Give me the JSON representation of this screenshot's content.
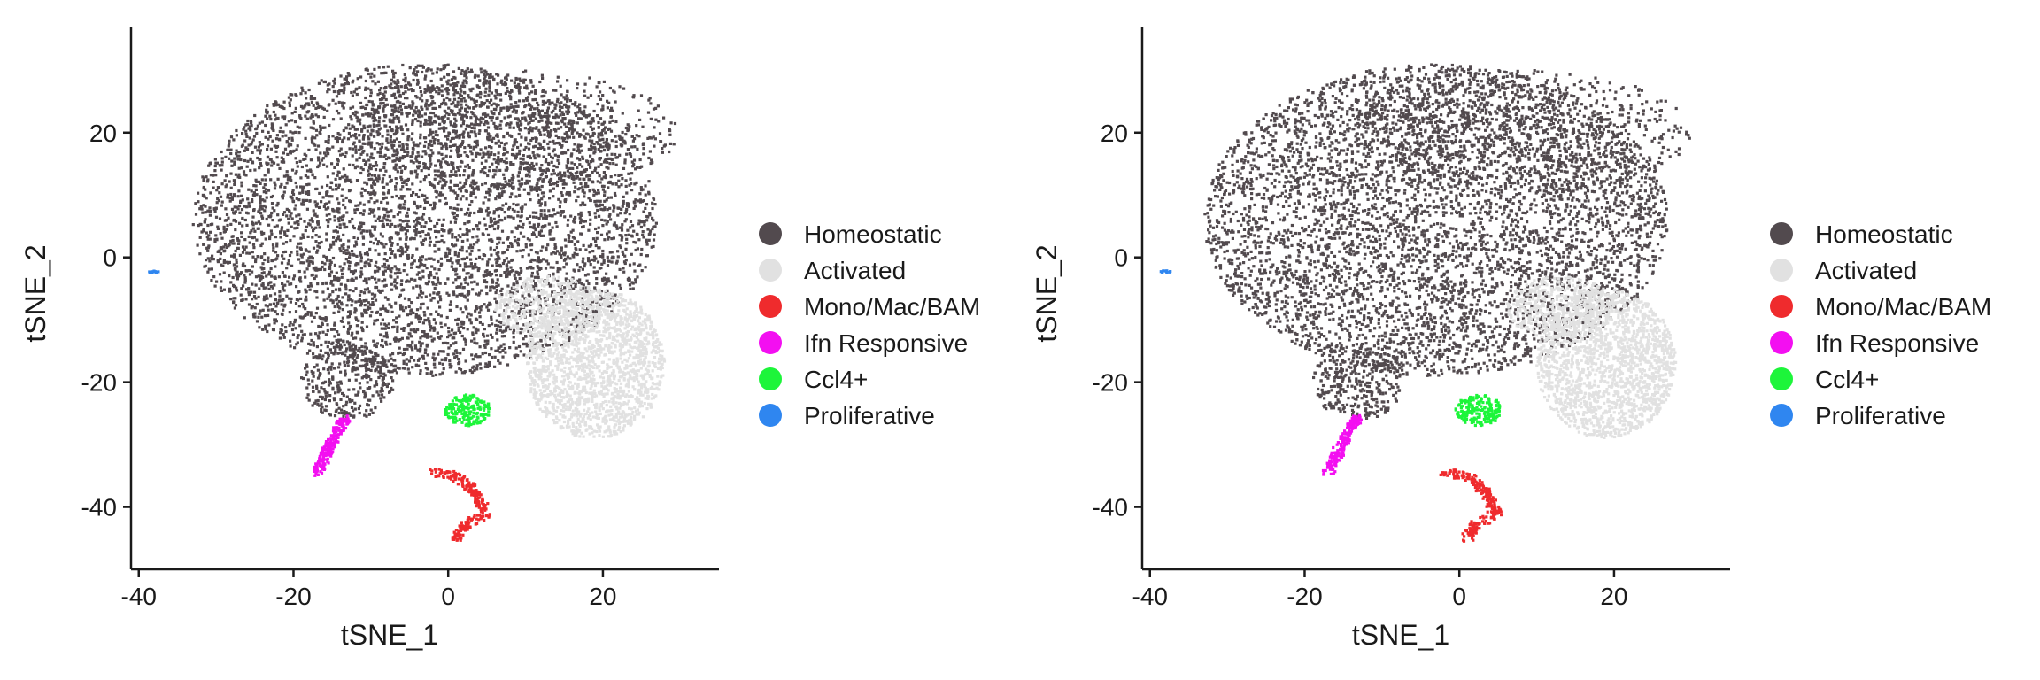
{
  "chart_data": [
    {
      "type": "scatter",
      "title": "",
      "xlabel": "tSNE_1",
      "ylabel": "tSNE_2",
      "xlim": [
        -41,
        35
      ],
      "ylim": [
        -50,
        37
      ],
      "xticks": [
        -40,
        -20,
        0,
        20
      ],
      "yticks": [
        -40,
        -20,
        0,
        20
      ],
      "grid": false,
      "legend_position": "right",
      "series": [
        {
          "name": "Homeostatic",
          "color": "#524a4e",
          "regions": [
            {
              "kind": "ellipse",
              "cx": -3,
              "cy": 6,
              "rx": 30,
              "ry": 25,
              "n": 5200
            },
            {
              "kind": "ellipse",
              "cx": 8,
              "cy": 20,
              "rx": 22,
              "ry": 10,
              "n": 700
            },
            {
              "kind": "ellipse",
              "cx": -13,
              "cy": -20,
              "rx": 6,
              "ry": 6,
              "n": 300
            }
          ]
        },
        {
          "name": "Activated",
          "color": "#e1e1e1",
          "regions": [
            {
              "kind": "ellipse",
              "cx": 19,
              "cy": -17,
              "rx": 9,
              "ry": 12,
              "n": 1700
            },
            {
              "kind": "ellipse",
              "cx": 13,
              "cy": -8,
              "rx": 7,
              "ry": 5,
              "n": 400
            }
          ]
        },
        {
          "name": "Mono/Mac/BAM",
          "color": "#ef2b2d",
          "path": [
            [
              -2,
              -34.5
            ],
            [
              1,
              -35
            ],
            [
              3,
              -37
            ],
            [
              4,
              -39
            ],
            [
              5,
              -41
            ],
            [
              2,
              -43
            ],
            [
              1,
              -45
            ]
          ],
          "n": 220
        },
        {
          "name": "Ifn Responsive",
          "color": "#f30ff1",
          "path": [
            [
              -17,
              -34.5
            ],
            [
              -16,
              -32
            ],
            [
              -15,
              -29.5
            ],
            [
              -14,
              -27
            ],
            [
              -13,
              -26
            ]
          ],
          "n": 200
        },
        {
          "name": "Ccl4+",
          "color": "#1df53a",
          "regions": [
            {
              "kind": "ellipse",
              "cx": 2.5,
              "cy": -24.5,
              "rx": 3,
              "ry": 2.5,
              "n": 180
            }
          ]
        },
        {
          "name": "Proliferative",
          "color": "#2f86f0",
          "regions": [
            {
              "kind": "ellipse",
              "cx": -38,
              "cy": -2.3,
              "rx": 0.7,
              "ry": 0.2,
              "n": 10
            }
          ]
        }
      ]
    },
    {
      "type": "scatter",
      "title": "",
      "xlabel": "tSNE_1",
      "ylabel": "tSNE_2",
      "xlim": [
        -41,
        35
      ],
      "ylim": [
        -50,
        37
      ],
      "xticks": [
        -40,
        -20,
        0,
        20
      ],
      "yticks": [
        -40,
        -20,
        0,
        20
      ],
      "grid": false,
      "legend_position": "right",
      "series": [
        {
          "name": "Homeostatic",
          "color": "#524a4e",
          "regions": [
            {
              "kind": "ellipse",
              "cx": -3,
              "cy": 6,
              "rx": 30,
              "ry": 25,
              "n": 5200
            },
            {
              "kind": "ellipse",
              "cx": 8,
              "cy": 20,
              "rx": 22,
              "ry": 10,
              "n": 700
            },
            {
              "kind": "ellipse",
              "cx": -13,
              "cy": -20,
              "rx": 6,
              "ry": 6,
              "n": 300
            }
          ]
        },
        {
          "name": "Activated",
          "color": "#e1e1e1",
          "regions": [
            {
              "kind": "ellipse",
              "cx": 19,
              "cy": -17,
              "rx": 9,
              "ry": 12,
              "n": 1700
            },
            {
              "kind": "ellipse",
              "cx": 13,
              "cy": -8,
              "rx": 7,
              "ry": 5,
              "n": 400
            }
          ]
        },
        {
          "name": "Mono/Mac/BAM",
          "color": "#ef2b2d",
          "path": [
            [
              -2,
              -34.5
            ],
            [
              1,
              -35
            ],
            [
              3,
              -37
            ],
            [
              4,
              -39
            ],
            [
              5,
              -41
            ],
            [
              2,
              -43
            ],
            [
              1,
              -45
            ]
          ],
          "n": 220
        },
        {
          "name": "Ifn Responsive",
          "color": "#f30ff1",
          "path": [
            [
              -17,
              -34.5
            ],
            [
              -16,
              -32
            ],
            [
              -15,
              -29.5
            ],
            [
              -14,
              -27
            ],
            [
              -13,
              -26
            ]
          ],
          "n": 200
        },
        {
          "name": "Ccl4+",
          "color": "#1df53a",
          "regions": [
            {
              "kind": "ellipse",
              "cx": 2.5,
              "cy": -24.5,
              "rx": 3,
              "ry": 2.5,
              "n": 180
            }
          ]
        },
        {
          "name": "Proliferative",
          "color": "#2f86f0",
          "regions": [
            {
              "kind": "ellipse",
              "cx": -38,
              "cy": -2.3,
              "rx": 0.7,
              "ry": 0.2,
              "n": 10
            }
          ]
        }
      ]
    }
  ]
}
